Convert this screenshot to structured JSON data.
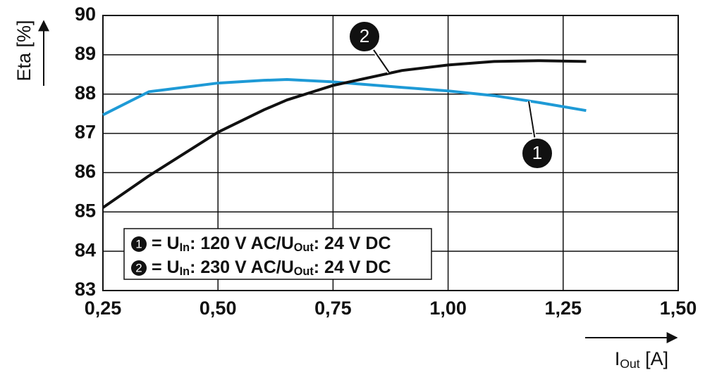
{
  "chart_data": {
    "type": "line",
    "y_label": "Eta [%]",
    "x_label": "IOut [A]",
    "x_label_sub": "Out",
    "x": [
      0.25,
      0.35,
      0.5,
      0.6,
      0.65,
      0.75,
      0.9,
      1.0,
      1.1,
      1.2,
      1.3
    ],
    "series": [
      {
        "name": "= UIn: 120 V AC/UOut: 24 V DC",
        "name_sub": [
          "In",
          "Out"
        ],
        "marker": "1",
        "color": "#1e9ad6",
        "values": [
          87.47,
          88.06,
          88.28,
          88.35,
          88.37,
          88.31,
          88.17,
          88.08,
          87.96,
          87.78,
          87.58
        ]
      },
      {
        "name": "= UIn: 230 V AC/UOut: 24 V DC",
        "name_sub": [
          "In",
          "Out"
        ],
        "marker": "2",
        "color": "#111111",
        "values": [
          85.11,
          85.92,
          87.03,
          87.6,
          87.85,
          88.22,
          88.6,
          88.74,
          88.83,
          88.85,
          88.83
        ]
      }
    ],
    "xlim": [
      0.25,
      1.5
    ],
    "xticks": [
      {
        "value": 0.25,
        "label": "0,25"
      },
      {
        "value": 0.5,
        "label": "0,50"
      },
      {
        "value": 0.75,
        "label": "0,75"
      },
      {
        "value": 1.0,
        "label": "1,00"
      },
      {
        "value": 1.25,
        "label": "1,25"
      },
      {
        "value": 1.5,
        "label": "1,50"
      }
    ],
    "ylim": [
      83,
      90
    ],
    "yticks": [
      83,
      84,
      85,
      86,
      87,
      88,
      89,
      90
    ],
    "grid": true
  }
}
